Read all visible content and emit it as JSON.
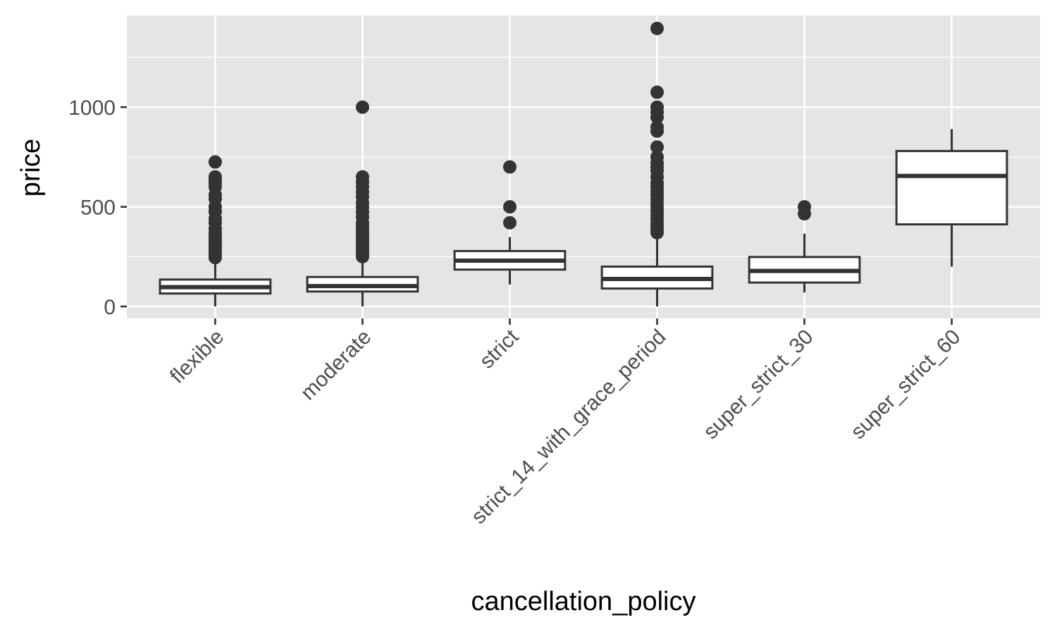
{
  "chart_data": {
    "type": "box",
    "xlabel": "cancellation_policy",
    "ylabel": "price",
    "ylim": [
      -60,
      1460
    ],
    "y_ticks": [
      0,
      500,
      1000
    ],
    "y_tick_labels": [
      "0",
      "500",
      "1000"
    ],
    "grid": true,
    "background": "#e5e5e5",
    "categories": [
      "flexible",
      "moderate",
      "strict",
      "strict_14_with_grace_period",
      "super_strict_30",
      "super_strict_60"
    ],
    "boxes": [
      {
        "category": "flexible",
        "whisker_low": 0,
        "q1": 65,
        "median": 97,
        "q3": 135,
        "whisker_high": 240,
        "outliers": [
          245,
          260,
          275,
          290,
          300,
          310,
          325,
          340,
          355,
          370,
          390,
          420,
          440,
          475,
          500,
          540,
          560,
          600,
          620,
          640,
          650,
          725
        ]
      },
      {
        "category": "moderate",
        "whisker_low": 0,
        "q1": 75,
        "median": 102,
        "q3": 148,
        "whisker_high": 245,
        "outliers": [
          250,
          265,
          280,
          295,
          310,
          325,
          340,
          355,
          370,
          385,
          400,
          420,
          450,
          475,
          500,
          520,
          550,
          575,
          600,
          625,
          650,
          1000
        ]
      },
      {
        "category": "strict",
        "whisker_low": 110,
        "q1": 185,
        "median": 230,
        "q3": 278,
        "whisker_high": 348,
        "outliers": [
          420,
          500,
          700
        ]
      },
      {
        "category": "strict_14_with_grace_period",
        "whisker_low": 0,
        "q1": 90,
        "median": 138,
        "q3": 200,
        "whisker_high": 350,
        "outliers": [
          370,
          385,
          400,
          420,
          440,
          460,
          480,
          500,
          520,
          540,
          560,
          580,
          600,
          620,
          650,
          680,
          700,
          720,
          750,
          800,
          880,
          900,
          950,
          975,
          1000,
          1075,
          1395
        ]
      },
      {
        "category": "super_strict_30",
        "whisker_low": 70,
        "q1": 120,
        "median": 178,
        "q3": 248,
        "whisker_high": 365,
        "outliers": [
          465,
          500
        ]
      },
      {
        "category": "super_strict_60",
        "whisker_low": 200,
        "q1": 412,
        "median": 655,
        "q3": 780,
        "whisker_high": 890,
        "outliers": []
      }
    ]
  }
}
